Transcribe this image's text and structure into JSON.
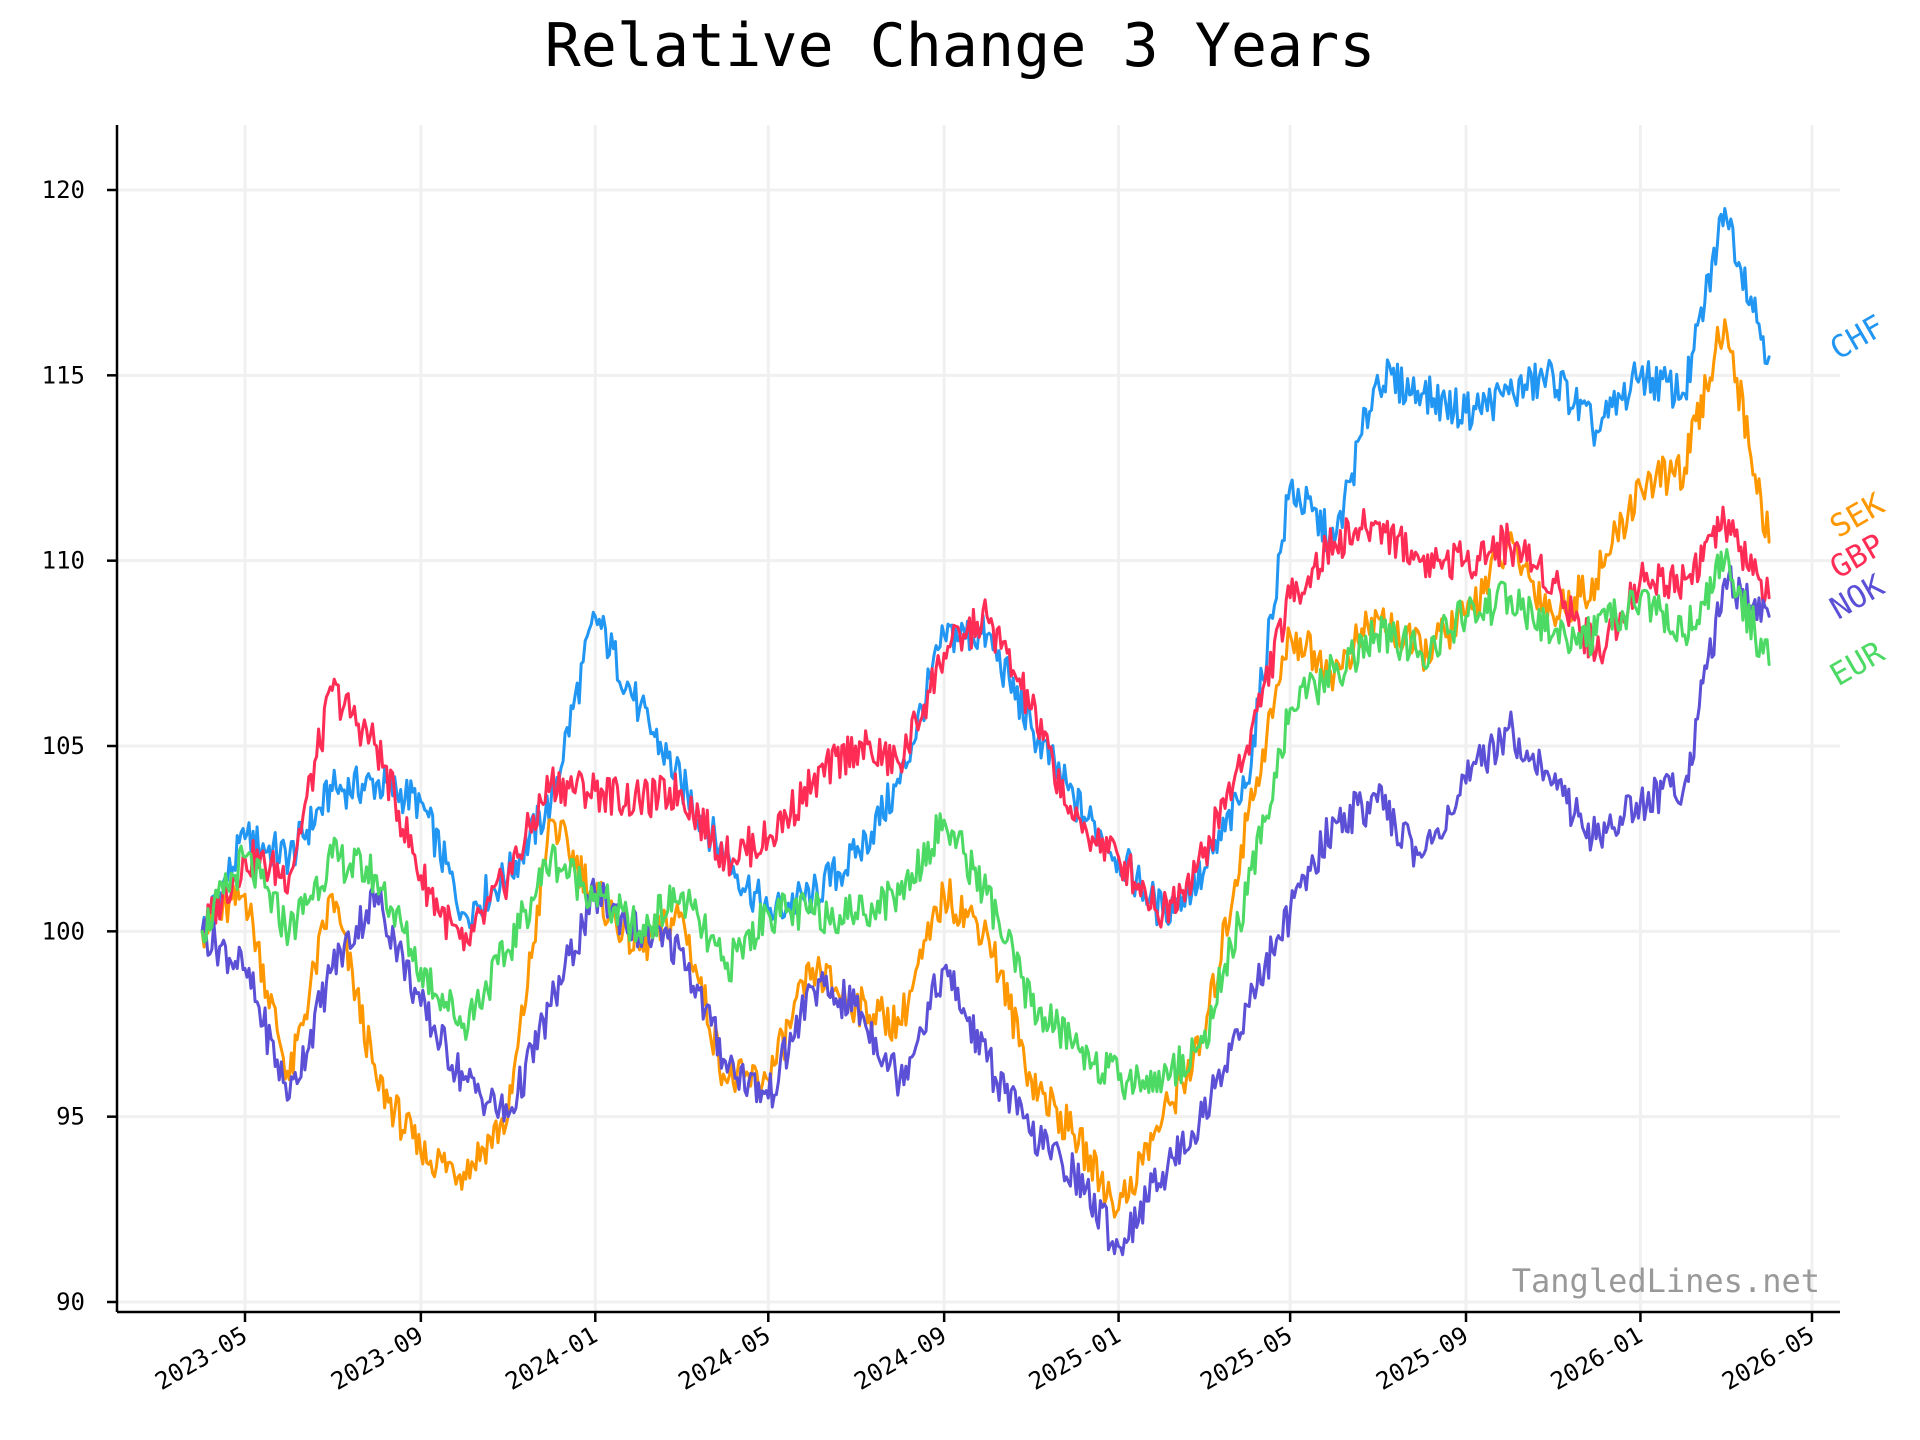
{
  "chart_data": {
    "type": "line",
    "title": "Relative Change 3 Years",
    "xlabel": "",
    "ylabel": "",
    "x_ticks": [
      "2023-05",
      "2023-09",
      "2024-01",
      "2024-05",
      "2024-09",
      "2025-01",
      "2025-05",
      "2025-09",
      "2026-01",
      "2026-05"
    ],
    "y_ticks": [
      90,
      95,
      100,
      105,
      110,
      115,
      120
    ],
    "xlim": [
      "2023-03-01",
      "2026-05-01"
    ],
    "ylim": [
      89.8,
      121.8
    ],
    "grid": true,
    "legend": "inline labels at right end of lines",
    "watermark": "TangledLines.net",
    "x": [
      "2023-04-01",
      "2023-05-01",
      "2023-06-01",
      "2023-07-01",
      "2023-08-01",
      "2023-09-01",
      "2023-10-01",
      "2023-11-01",
      "2023-12-01",
      "2024-01-01",
      "2024-02-01",
      "2024-03-01",
      "2024-04-01",
      "2024-05-01",
      "2024-06-01",
      "2024-07-01",
      "2024-08-01",
      "2024-09-01",
      "2024-10-01",
      "2024-11-01",
      "2024-12-01",
      "2025-01-01",
      "2025-02-01",
      "2025-03-01",
      "2025-04-01",
      "2025-05-01",
      "2025-06-01",
      "2025-07-01",
      "2025-08-01",
      "2025-09-01",
      "2025-10-01",
      "2025-11-01",
      "2025-12-01",
      "2026-01-01",
      "2026-02-01",
      "2026-03-01",
      "2026-04-01"
    ],
    "series": [
      {
        "name": "CHF",
        "color": "#2196F3",
        "values": [
          100.0,
          102.5,
          102.0,
          103.8,
          104.0,
          103.5,
          100.5,
          101.5,
          103.5,
          108.5,
          106.0,
          104.0,
          102.0,
          100.5,
          101.0,
          102.0,
          104.0,
          108.0,
          108.0,
          105.5,
          103.5,
          102.0,
          100.5,
          101.5,
          104.0,
          112.0,
          110.5,
          115.0,
          114.5,
          114.0,
          114.5,
          115.0,
          113.5,
          115.0,
          114.5,
          119.5,
          115.5
        ]
      },
      {
        "name": "SEK",
        "color": "#FF9800",
        "values": [
          100.0,
          101.0,
          96.0,
          101.0,
          96.0,
          94.0,
          93.5,
          95.0,
          103.0,
          101.0,
          99.5,
          100.5,
          96.0,
          96.0,
          99.0,
          98.0,
          97.5,
          101.0,
          100.0,
          96.0,
          94.5,
          92.5,
          95.0,
          97.0,
          103.0,
          108.0,
          107.0,
          108.5,
          107.5,
          108.5,
          110.5,
          108.5,
          109.5,
          112.0,
          112.5,
          116.5,
          110.5
        ]
      },
      {
        "name": "GBP",
        "color": "#FF2D55",
        "values": [
          100.0,
          102.0,
          101.5,
          106.5,
          105.0,
          101.5,
          99.5,
          101.5,
          104.0,
          103.8,
          103.5,
          103.8,
          102.0,
          102.5,
          104.0,
          105.0,
          104.5,
          107.5,
          108.5,
          106.0,
          103.0,
          102.0,
          100.5,
          102.0,
          105.0,
          109.0,
          110.5,
          111.0,
          110.0,
          110.0,
          110.5,
          109.5,
          107.5,
          109.5,
          109.5,
          111.0,
          109.0
        ]
      },
      {
        "name": "NOK",
        "color": "#5B50D6",
        "values": [
          100.0,
          99.0,
          95.5,
          99.0,
          101.0,
          98.0,
          96.0,
          95.0,
          98.0,
          101.0,
          100.0,
          99.5,
          96.5,
          95.5,
          98.5,
          98.0,
          96.0,
          99.0,
          96.5,
          94.5,
          93.5,
          91.5,
          93.5,
          95.0,
          98.0,
          100.5,
          103.0,
          103.5,
          102.0,
          104.0,
          105.5,
          104.0,
          102.5,
          103.5,
          104.0,
          109.5,
          108.5
        ]
      },
      {
        "name": "EUR",
        "color": "#4CD964",
        "values": [
          100.0,
          102.0,
          100.0,
          102.0,
          101.5,
          99.0,
          97.5,
          99.5,
          102.0,
          101.0,
          100.0,
          101.0,
          99.0,
          100.5,
          100.5,
          100.5,
          101.0,
          103.0,
          101.0,
          98.0,
          97.0,
          96.0,
          96.0,
          97.0,
          101.0,
          106.0,
          107.0,
          108.0,
          107.5,
          108.5,
          109.0,
          108.0,
          108.0,
          109.0,
          108.0,
          110.0,
          107.2
        ]
      }
    ]
  }
}
